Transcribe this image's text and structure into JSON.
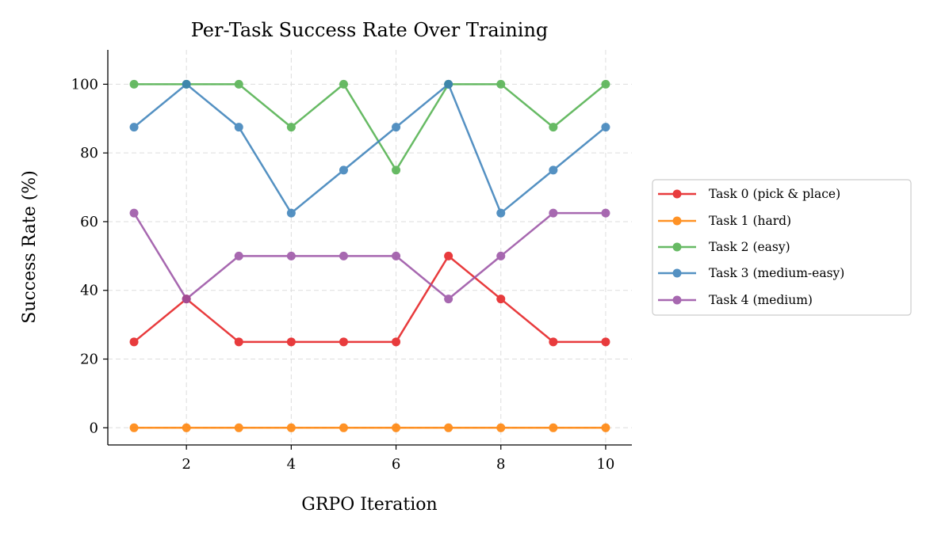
{
  "chart_data": {
    "type": "line",
    "title": "Per-Task Success Rate Over Training",
    "xlabel": "GRPO Iteration",
    "ylabel": "Success Rate (%)",
    "xlim": [
      0.5,
      10.5
    ],
    "ylim": [
      -5,
      110
    ],
    "xticks": [
      2,
      4,
      6,
      8,
      10
    ],
    "yticks": [
      0,
      20,
      40,
      60,
      80,
      100
    ],
    "grid": true,
    "legend_placement": "outside-right",
    "x": [
      1,
      2,
      3,
      4,
      5,
      6,
      7,
      8,
      9,
      10
    ],
    "series": [
      {
        "name": "Task 0 (pick & place)",
        "color": "#e41a1c",
        "values": [
          25,
          37.5,
          25,
          25,
          25,
          25,
          50,
          37.5,
          25,
          25
        ]
      },
      {
        "name": "Task 1 (hard)",
        "color": "#ff7f00",
        "values": [
          0,
          0,
          0,
          0,
          0,
          0,
          0,
          0,
          0,
          0
        ]
      },
      {
        "name": "Task 2 (easy)",
        "color": "#4daf4a",
        "values": [
          100,
          100,
          100,
          87.5,
          100,
          75,
          100,
          100,
          87.5,
          100
        ]
      },
      {
        "name": "Task 3 (medium-easy)",
        "color": "#377eb8",
        "values": [
          87.5,
          100,
          87.5,
          62.5,
          75,
          87.5,
          100,
          62.5,
          75,
          87.5
        ]
      },
      {
        "name": "Task 4 (medium)",
        "color": "#984ea3",
        "values": [
          62.5,
          37.5,
          50,
          50,
          50,
          50,
          37.5,
          50,
          62.5,
          62.5
        ]
      }
    ]
  }
}
